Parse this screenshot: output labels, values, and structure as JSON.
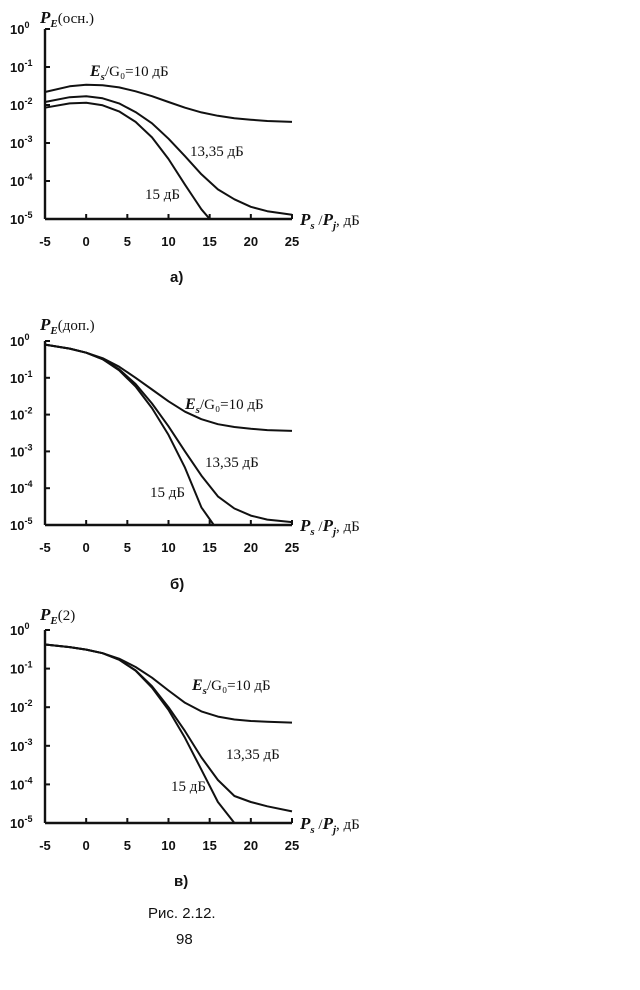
{
  "figure": {
    "caption": "Рис. 2.12.",
    "page_number": "98"
  },
  "chart_data": [
    {
      "type": "line",
      "panel_label": "а)",
      "ylabel": "(осн.)",
      "xlabel_unit": ", дБ",
      "x_ticks": [
        "-5",
        "0",
        "5",
        "10",
        "15",
        "20",
        "25"
      ],
      "xlim": [
        -5,
        25
      ],
      "ylim_log10": [
        -5,
        0
      ],
      "y_scale": "log",
      "series": [
        {
          "name": "/G₀=10 дБ",
          "x": [
            -5,
            -2,
            0,
            2,
            4,
            6,
            8,
            10,
            12,
            14,
            16,
            18,
            20,
            22,
            25
          ],
          "y": [
            0.022,
            0.031,
            0.034,
            0.033,
            0.029,
            0.023,
            0.017,
            0.012,
            0.0085,
            0.0064,
            0.0052,
            0.0045,
            0.0041,
            0.0038,
            0.0036
          ]
        },
        {
          "name": "13,35 дБ",
          "x": [
            -5,
            -2,
            0,
            2,
            4,
            6,
            8,
            10,
            12,
            14,
            16,
            18,
            20,
            22,
            25
          ],
          "y": [
            0.012,
            0.016,
            0.017,
            0.015,
            0.011,
            0.0065,
            0.0033,
            0.0013,
            0.00045,
            0.00015,
            6e-05,
            3.3e-05,
            2.1e-05,
            1.6e-05,
            1.3e-05
          ]
        },
        {
          "name": "15 дБ",
          "x": [
            -5,
            -2,
            0,
            2,
            4,
            6,
            8,
            10,
            12,
            13,
            14,
            15
          ],
          "y": [
            0.0085,
            0.011,
            0.0115,
            0.0098,
            0.0068,
            0.0036,
            0.0014,
            0.00038,
            8e-05,
            3.8e-05,
            1.8e-05,
            1e-05
          ]
        }
      ]
    },
    {
      "type": "line",
      "panel_label": "б)",
      "ylabel": "(доп.)",
      "xlabel_unit": ", дБ",
      "x_ticks": [
        "-5",
        "0",
        "5",
        "10",
        "15",
        "20",
        "25"
      ],
      "xlim": [
        -5,
        25
      ],
      "ylim_log10": [
        -5,
        0
      ],
      "y_scale": "log",
      "series": [
        {
          "name": "/G₀=10 дБ",
          "x": [
            -5,
            -2,
            0,
            2,
            4,
            6,
            8,
            10,
            12,
            14,
            16,
            18,
            20,
            22,
            25
          ],
          "y": [
            0.8,
            0.62,
            0.48,
            0.34,
            0.2,
            0.1,
            0.048,
            0.023,
            0.012,
            0.0075,
            0.0055,
            0.0046,
            0.0041,
            0.0038,
            0.0036
          ]
        },
        {
          "name": "13,35 дБ",
          "x": [
            -5,
            -2,
            0,
            2,
            4,
            6,
            8,
            10,
            12,
            14,
            16,
            18,
            20,
            22,
            25
          ],
          "y": [
            0.8,
            0.62,
            0.48,
            0.32,
            0.17,
            0.068,
            0.02,
            0.0048,
            0.001,
            0.00022,
            6e-05,
            2.8e-05,
            1.8e-05,
            1.4e-05,
            1.2e-05
          ]
        },
        {
          "name": "15 дБ",
          "x": [
            -5,
            -2,
            0,
            2,
            4,
            6,
            8,
            10,
            12,
            14,
            15.5
          ],
          "y": [
            0.8,
            0.62,
            0.48,
            0.32,
            0.16,
            0.058,
            0.015,
            0.0028,
            0.00036,
            3e-05,
            1e-05
          ]
        }
      ]
    },
    {
      "type": "line",
      "panel_label": "в)",
      "ylabel": "(2)",
      "xlabel_unit": ", дБ",
      "x_ticks": [
        "-5",
        "0",
        "5",
        "10",
        "15",
        "20",
        "25"
      ],
      "xlim": [
        -5,
        25
      ],
      "ylim_log10": [
        -5,
        0
      ],
      "y_scale": "log",
      "series": [
        {
          "name": "/G₀=10 дБ",
          "x": [
            -5,
            -2,
            0,
            2,
            4,
            6,
            8,
            10,
            12,
            14,
            16,
            18,
            20,
            22,
            25
          ],
          "y": [
            0.42,
            0.36,
            0.31,
            0.25,
            0.18,
            0.11,
            0.058,
            0.027,
            0.013,
            0.0078,
            0.0057,
            0.0048,
            0.0044,
            0.0042,
            0.004
          ]
        },
        {
          "name": "13,35 дБ",
          "x": [
            -5,
            -2,
            0,
            2,
            4,
            6,
            8,
            10,
            12,
            14,
            16,
            18,
            20,
            22,
            25
          ],
          "y": [
            0.42,
            0.36,
            0.31,
            0.25,
            0.17,
            0.09,
            0.035,
            0.01,
            0.0024,
            0.0005,
            0.00013,
            5e-05,
            3.5e-05,
            2.7e-05,
            2e-05
          ]
        },
        {
          "name": "15 дБ",
          "x": [
            -5,
            -2,
            0,
            2,
            4,
            6,
            8,
            10,
            12,
            14,
            16,
            18
          ],
          "y": [
            0.42,
            0.36,
            0.31,
            0.25,
            0.17,
            0.088,
            0.032,
            0.0085,
            0.0016,
            0.00024,
            3.5e-05,
            1e-05
          ]
        }
      ]
    }
  ]
}
